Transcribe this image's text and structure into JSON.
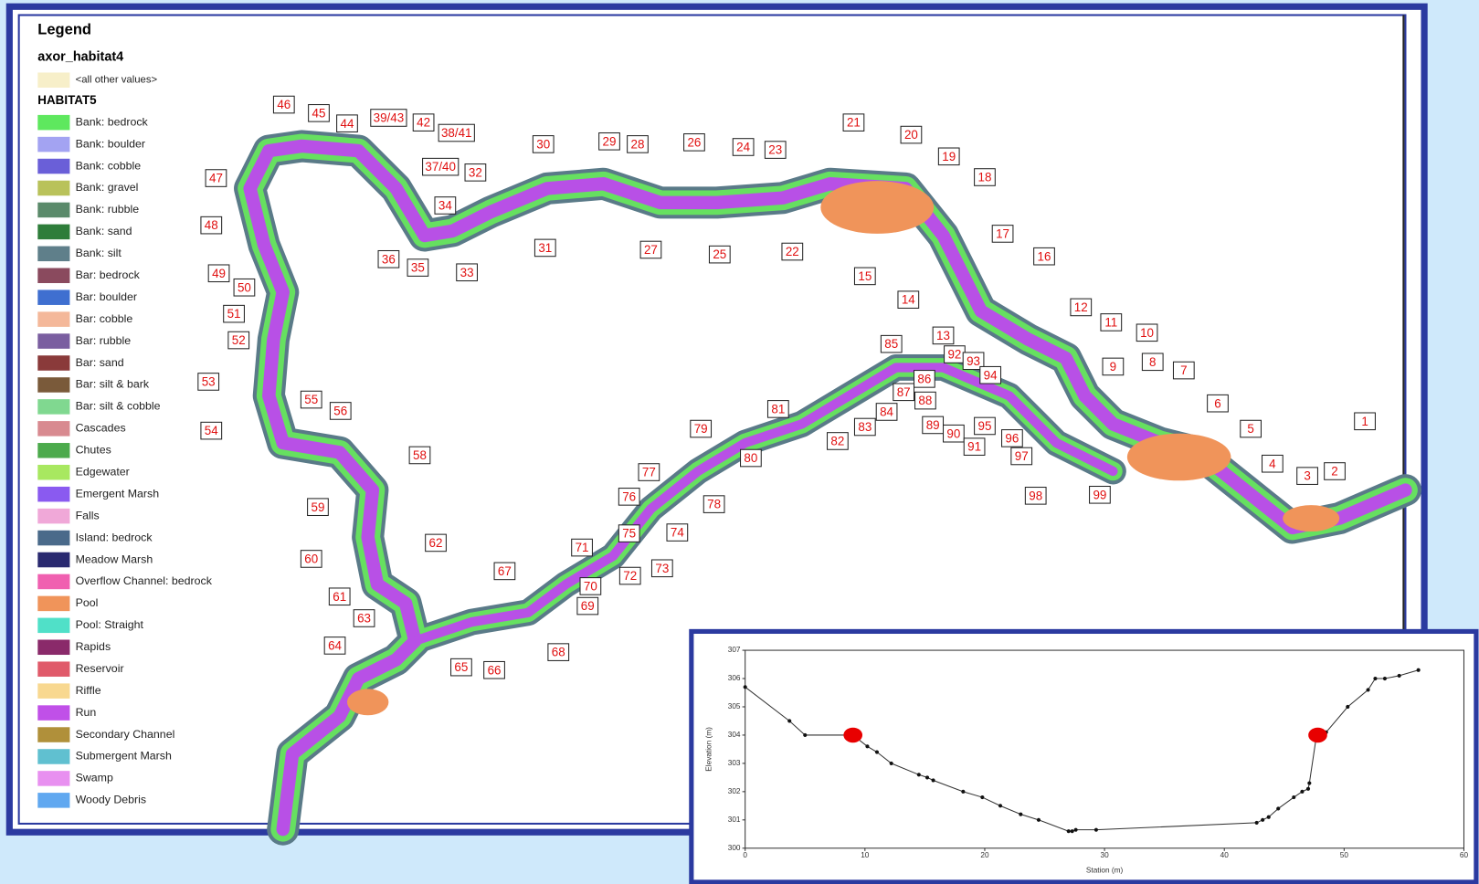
{
  "legend": {
    "title": "Legend",
    "layer": "axor_habitat4",
    "other": {
      "label": "<all other values>",
      "color": "#f7efc9"
    },
    "group": "HABITAT5",
    "items": [
      {
        "label": "Bank: bedrock",
        "color": "#5ee85e"
      },
      {
        "label": "Bank: boulder",
        "color": "#a3a3f2"
      },
      {
        "label": "Bank: cobble",
        "color": "#6a5fd8"
      },
      {
        "label": "Bank: gravel",
        "color": "#b9c25a"
      },
      {
        "label": "Bank: rubble",
        "color": "#5a8a6a"
      },
      {
        "label": "Bank: sand",
        "color": "#2e7d3a"
      },
      {
        "label": "Bank: silt",
        "color": "#5f7f8a"
      },
      {
        "label": "Bar: bedrock",
        "color": "#8a4a5e"
      },
      {
        "label": "Bar: boulder",
        "color": "#3f6fd0"
      },
      {
        "label": "Bar: cobble",
        "color": "#f4b89a"
      },
      {
        "label": "Bar: rubble",
        "color": "#7a5ea0"
      },
      {
        "label": "Bar: sand",
        "color": "#8a3a3a"
      },
      {
        "label": "Bar: silt & bark",
        "color": "#7a5a3a"
      },
      {
        "label": "Bar: silt & cobble",
        "color": "#80d890"
      },
      {
        "label": "Cascades",
        "color": "#d88a90"
      },
      {
        "label": "Chutes",
        "color": "#4caa4c"
      },
      {
        "label": "Edgewater",
        "color": "#a8e860"
      },
      {
        "label": "Emergent Marsh",
        "color": "#8a5af0"
      },
      {
        "label": "Falls",
        "color": "#f0a8d8"
      },
      {
        "label": "Island: bedrock",
        "color": "#4a6a8a"
      },
      {
        "label": "Meadow Marsh",
        "color": "#2a2a70"
      },
      {
        "label": "Overflow Channel: bedrock",
        "color": "#f060b0"
      },
      {
        "label": "Pool",
        "color": "#f0945a"
      },
      {
        "label": "Pool: Straight",
        "color": "#50e0c8"
      },
      {
        "label": "Rapids",
        "color": "#8a2a6a"
      },
      {
        "label": "Reservoir",
        "color": "#e05a6a"
      },
      {
        "label": "Riffle",
        "color": "#f8d890"
      },
      {
        "label": "Run",
        "color": "#c050e8"
      },
      {
        "label": "Secondary Channel",
        "color": "#b0903a"
      },
      {
        "label": "Submergent Marsh",
        "color": "#60c0d0"
      },
      {
        "label": "Swamp",
        "color": "#e890f0"
      },
      {
        "label": "Woody Debris",
        "color": "#60a8f0"
      }
    ]
  },
  "map": {
    "sections": [
      "1",
      "2",
      "3",
      "4",
      "5",
      "6",
      "7",
      "8",
      "9",
      "10",
      "11",
      "12",
      "13",
      "14",
      "15",
      "16",
      "17",
      "18",
      "19",
      "20",
      "21",
      "22",
      "23",
      "24",
      "25",
      "26",
      "27",
      "28",
      "29",
      "30",
      "31",
      "32",
      "33",
      "34",
      "35",
      "36",
      "37/40",
      "38/41",
      "39/43",
      "42",
      "44",
      "45",
      "46",
      "47",
      "48",
      "49",
      "50",
      "51",
      "52",
      "53",
      "54",
      "55",
      "56",
      "58",
      "59",
      "60",
      "61",
      "62",
      "63",
      "64",
      "65",
      "66",
      "67",
      "68",
      "69",
      "70",
      "71",
      "72",
      "73",
      "74",
      "75",
      "76",
      "77",
      "78",
      "79",
      "80",
      "81",
      "82",
      "83",
      "84",
      "85",
      "86",
      "87",
      "88",
      "89",
      "90",
      "91",
      "92",
      "93",
      "94",
      "95",
      "96",
      "97",
      "98",
      "99"
    ]
  },
  "chart_data": {
    "type": "line",
    "x_label": "Station (m)",
    "y_label": "Elevation (m)",
    "color": "#333333",
    "x": [
      0,
      3.7,
      5,
      9,
      10.2,
      11,
      12.2,
      14.5,
      15.2,
      15.7,
      18.2,
      19.8,
      21.3,
      23,
      24.5,
      27,
      27.3,
      27.6,
      29.3,
      42.7,
      43.2,
      43.7,
      44.5,
      45.8,
      46.5,
      47,
      47.1,
      47.7,
      48.5,
      50.3,
      52,
      52.6,
      53.4,
      54.6,
      56.2
    ],
    "values": [
      305.7,
      304.5,
      304,
      304,
      303.6,
      303.4,
      303,
      302.6,
      302.5,
      302.4,
      302,
      301.8,
      301.5,
      301.2,
      301,
      300.6,
      300.6,
      300.65,
      300.65,
      300.9,
      301,
      301.1,
      301.4,
      301.8,
      302,
      302.1,
      302.3,
      304,
      304.1,
      305,
      305.6,
      306,
      306,
      306.1,
      306.3
    ],
    "water_level": {
      "color": "#e80000",
      "x": [
        9,
        47.8
      ],
      "values": [
        304,
        304
      ]
    },
    "xlim": [
      0,
      60
    ],
    "xticks": [
      0,
      10,
      20,
      30,
      40,
      50,
      60
    ],
    "ylim": [
      300,
      307
    ],
    "yticks": [
      300,
      301,
      302,
      303,
      304,
      305,
      306,
      307
    ]
  }
}
